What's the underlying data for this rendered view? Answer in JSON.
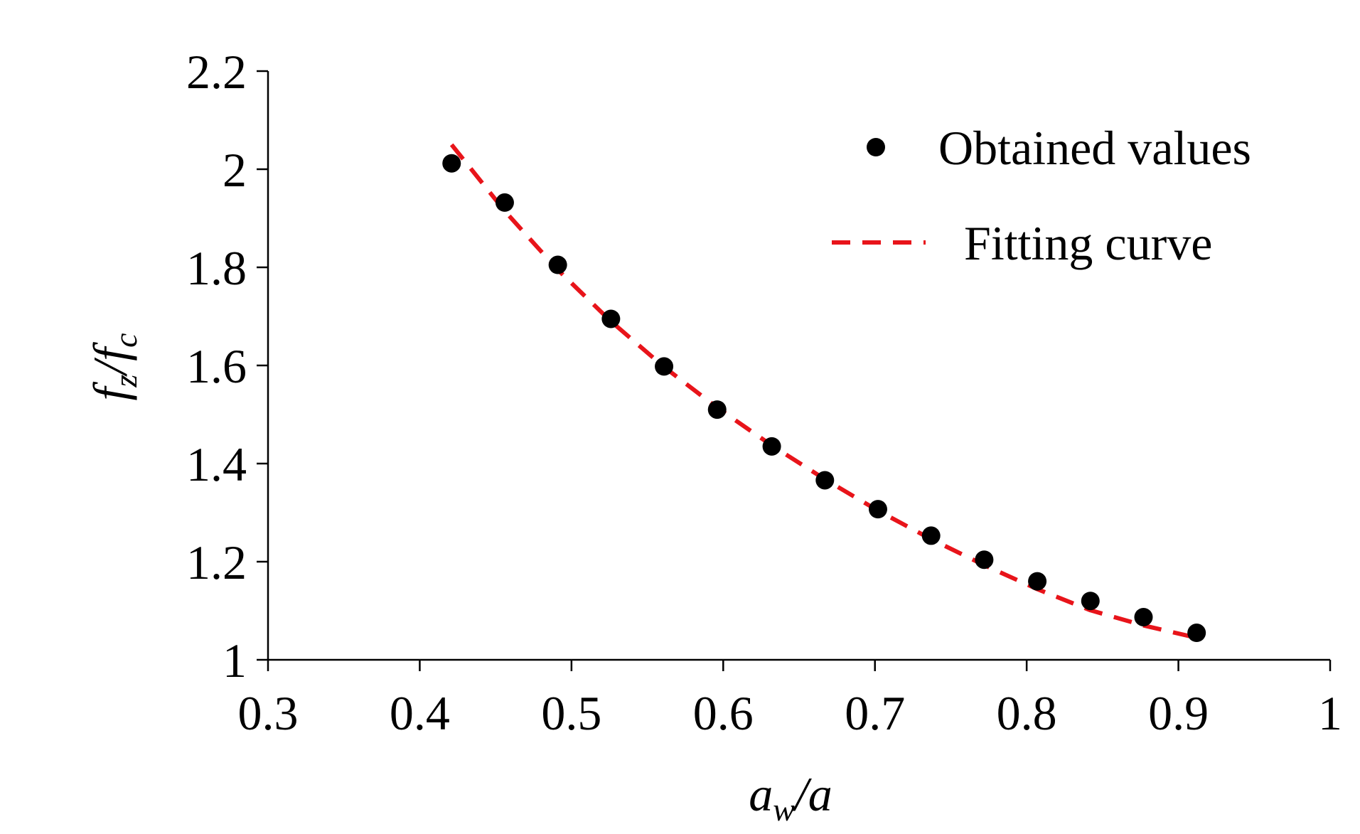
{
  "chart_data": {
    "type": "scatter",
    "xlabel": {
      "main": "a",
      "sub": "w",
      "rest": "/a"
    },
    "ylabel": {
      "main": "f",
      "sub": "z",
      "mid": "/f",
      "sub2": "c"
    },
    "xlim": [
      0.3,
      1.0
    ],
    "ylim": [
      1.0,
      2.2
    ],
    "x_ticks": [
      0.3,
      0.4,
      0.5,
      0.6,
      0.7,
      0.8,
      0.9,
      1.0
    ],
    "x_tick_labels": [
      "0.3",
      "0.4",
      "0.5",
      "0.6",
      "0.7",
      "0.8",
      "0.9",
      "1"
    ],
    "y_ticks": [
      1.0,
      1.2,
      1.4,
      1.6,
      1.8,
      2.0,
      2.2
    ],
    "y_tick_labels": [
      "1",
      "1.2",
      "1.4",
      "1.6",
      "1.8",
      "2",
      "2.2"
    ],
    "grid": false,
    "legend_position": "top-right",
    "series": [
      {
        "name": "Obtained values",
        "kind": "scatter",
        "color": "#000000",
        "x": [
          0.421,
          0.456,
          0.491,
          0.526,
          0.561,
          0.596,
          0.632,
          0.667,
          0.702,
          0.737,
          0.772,
          0.807,
          0.842,
          0.877,
          0.912
        ],
        "y": [
          2.012,
          1.932,
          1.805,
          1.695,
          1.598,
          1.51,
          1.435,
          1.366,
          1.307,
          1.253,
          1.204,
          1.16,
          1.12,
          1.087,
          1.055
        ]
      },
      {
        "name": "Fitting curve",
        "kind": "line",
        "style": "dashed",
        "color": "#e8141a",
        "x": [
          0.421,
          0.456,
          0.491,
          0.526,
          0.561,
          0.596,
          0.632,
          0.667,
          0.702,
          0.737,
          0.772,
          0.807,
          0.842,
          0.877,
          0.912
        ],
        "y": [
          2.05,
          1.915,
          1.795,
          1.69,
          1.597,
          1.514,
          1.437,
          1.368,
          1.304,
          1.246,
          1.193,
          1.144,
          1.101,
          1.07,
          1.045
        ]
      }
    ]
  }
}
